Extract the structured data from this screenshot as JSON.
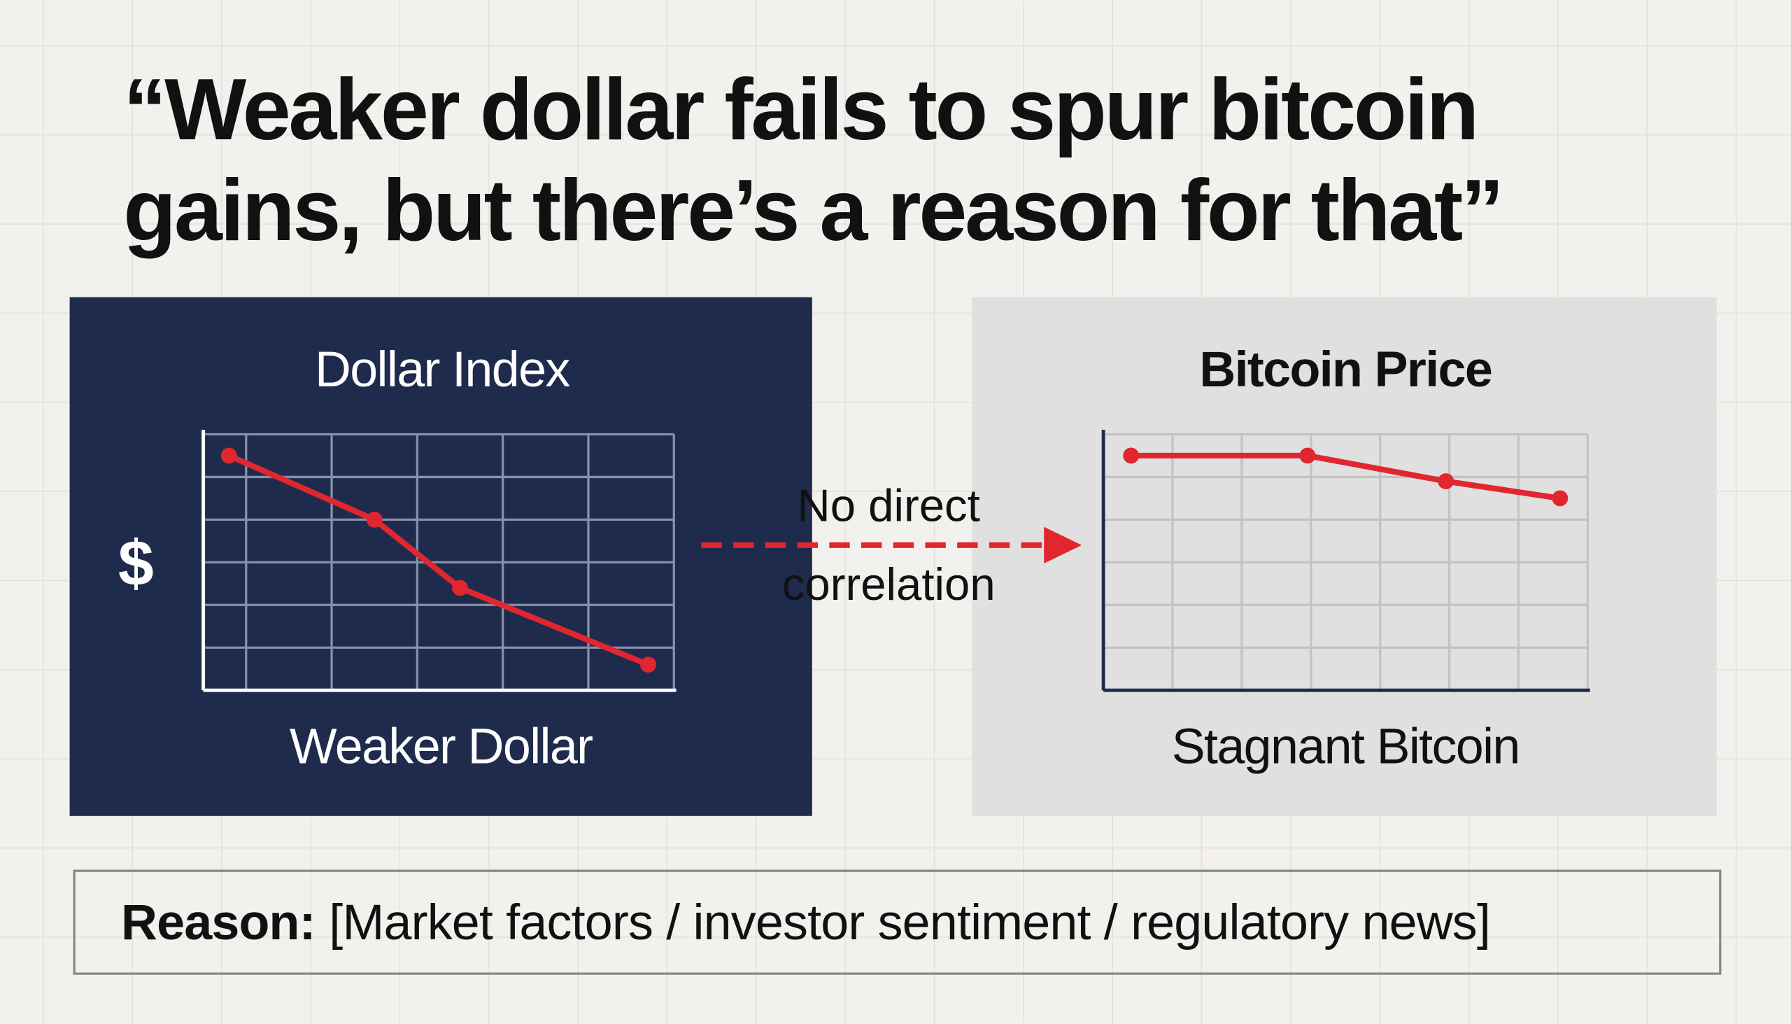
{
  "title": [
    "“Weaker dollar fails to spur bitcoin",
    "gains, but there’s a reason for that”"
  ],
  "arrow_label": [
    "No direct",
    "correlation"
  ],
  "reason": {
    "label": "Reason:",
    "text": "[Market factors / investor sentiment / regulatory news]"
  },
  "chart_data": [
    {
      "type": "line",
      "title": "Dollar Index",
      "ylabel": "$",
      "caption": "Weaker Dollar",
      "x": [
        0.3,
        2,
        3,
        5.2
      ],
      "values": [
        5.5,
        4,
        2.4,
        0.6
      ],
      "color": "#e0262f",
      "xlim": [
        0,
        5.5
      ],
      "ylim": [
        0,
        6
      ],
      "xticks": [
        0.5,
        1.5,
        2.5,
        3.5,
        4.5,
        5.5
      ],
      "yticks": [
        1,
        2,
        3,
        4,
        5,
        6
      ],
      "grid": true
    },
    {
      "type": "line",
      "title": "Bitcoin Price",
      "caption": "Stagnant Bitcoin",
      "x": [
        0.4,
        2.95,
        4.95,
        6.6
      ],
      "values": [
        5.5,
        5.5,
        4.9,
        4.5
      ],
      "color": "#e0262f",
      "xlim": [
        0,
        7
      ],
      "ylim": [
        0,
        6
      ],
      "xticks": [
        1,
        2,
        3,
        4,
        5,
        6,
        7
      ],
      "yticks": [
        1,
        2,
        3,
        4,
        5,
        6
      ],
      "grid": true
    }
  ]
}
